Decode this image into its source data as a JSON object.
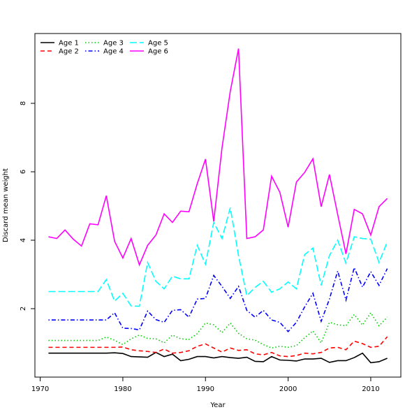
{
  "chart_data": {
    "type": "line",
    "x_label": "Year",
    "y_label": "Discard mean weight",
    "x": [
      1971,
      1972,
      1973,
      1974,
      1975,
      1976,
      1977,
      1978,
      1979,
      1980,
      1981,
      1982,
      1983,
      1984,
      1985,
      1986,
      1987,
      1988,
      1989,
      1990,
      1991,
      1992,
      1993,
      1994,
      1995,
      1996,
      1997,
      1998,
      1999,
      2000,
      2001,
      2002,
      2003,
      2004,
      2005,
      2006,
      2007,
      2008,
      2009,
      2010,
      2011,
      2012
    ],
    "xlim": [
      1969.36,
      2013.64
    ],
    "xticks": [
      1970,
      1980,
      1990,
      2000,
      2010
    ],
    "ylim": [
      0.0,
      10.04
    ],
    "yticks": [
      2,
      4,
      6,
      8
    ],
    "legend": "top-left",
    "series": [
      {
        "name": "Age 1",
        "color": "#000000",
        "line_style": "solid",
        "values": [
          0.7,
          0.7,
          0.7,
          0.7,
          0.7,
          0.7,
          0.7,
          0.7,
          0.71,
          0.69,
          0.6,
          0.59,
          0.58,
          0.72,
          0.6,
          0.67,
          0.48,
          0.52,
          0.6,
          0.6,
          0.56,
          0.6,
          0.57,
          0.55,
          0.58,
          0.46,
          0.45,
          0.6,
          0.5,
          0.49,
          0.47,
          0.53,
          0.53,
          0.55,
          0.43,
          0.48,
          0.48,
          0.57,
          0.7,
          0.42,
          0.45,
          0.55
        ]
      },
      {
        "name": "Age 2",
        "color": "#ff0000",
        "line_style": "dashed",
        "values": [
          0.87,
          0.87,
          0.87,
          0.87,
          0.87,
          0.87,
          0.87,
          0.87,
          0.87,
          0.88,
          0.8,
          0.77,
          0.75,
          0.72,
          0.82,
          0.7,
          0.72,
          0.77,
          0.9,
          0.97,
          0.85,
          0.73,
          0.85,
          0.78,
          0.8,
          0.68,
          0.65,
          0.72,
          0.62,
          0.6,
          0.63,
          0.7,
          0.68,
          0.72,
          0.85,
          0.87,
          0.8,
          1.05,
          0.98,
          0.87,
          0.9,
          1.18
        ]
      },
      {
        "name": "Age 3",
        "color": "#00cd00",
        "line_style": "dotted",
        "values": [
          1.07,
          1.07,
          1.07,
          1.07,
          1.07,
          1.07,
          1.07,
          1.17,
          1.08,
          0.95,
          1.12,
          1.23,
          1.13,
          1.12,
          1.0,
          1.23,
          1.12,
          1.1,
          1.27,
          1.58,
          1.53,
          1.3,
          1.58,
          1.28,
          1.12,
          1.08,
          0.95,
          0.85,
          0.9,
          0.87,
          0.92,
          1.15,
          1.35,
          1.0,
          1.6,
          1.53,
          1.5,
          1.83,
          1.52,
          1.88,
          1.5,
          1.75
        ]
      },
      {
        "name": "Age 4",
        "color": "#0000ff",
        "line_style": "dotdash",
        "values": [
          1.67,
          1.67,
          1.67,
          1.67,
          1.67,
          1.67,
          1.67,
          1.67,
          1.88,
          1.43,
          1.42,
          1.38,
          1.93,
          1.68,
          1.6,
          1.95,
          1.97,
          1.75,
          2.28,
          2.3,
          2.97,
          2.65,
          2.3,
          2.65,
          1.95,
          1.75,
          1.95,
          1.67,
          1.6,
          1.33,
          1.6,
          2.05,
          2.45,
          1.63,
          2.28,
          3.1,
          2.25,
          3.2,
          2.63,
          3.08,
          2.68,
          3.17
        ]
      },
      {
        "name": "Age 5",
        "color": "#00ffff",
        "line_style": "longdash",
        "values": [
          2.5,
          2.5,
          2.5,
          2.5,
          2.5,
          2.5,
          2.5,
          2.85,
          2.22,
          2.45,
          2.08,
          2.07,
          3.35,
          2.8,
          2.58,
          2.95,
          2.87,
          2.87,
          3.85,
          3.3,
          4.52,
          4.05,
          4.95,
          3.55,
          2.38,
          2.62,
          2.8,
          2.48,
          2.58,
          2.78,
          2.58,
          3.58,
          3.77,
          2.68,
          3.55,
          4.0,
          3.33,
          4.1,
          4.05,
          4.03,
          3.35,
          3.95
        ]
      },
      {
        "name": "Age 6",
        "color": "#ff00ff",
        "line_style": "solid",
        "values": [
          4.1,
          4.05,
          4.3,
          4.03,
          3.83,
          4.48,
          4.45,
          5.3,
          3.97,
          3.48,
          4.05,
          3.28,
          3.85,
          4.15,
          4.77,
          4.52,
          4.85,
          4.83,
          5.65,
          6.37,
          4.55,
          6.7,
          8.35,
          9.6,
          4.05,
          4.1,
          4.3,
          5.87,
          5.4,
          4.38,
          5.7,
          5.98,
          6.38,
          4.98,
          5.92,
          4.75,
          3.6,
          4.9,
          4.77,
          4.15,
          4.98,
          5.22
        ]
      }
    ]
  }
}
